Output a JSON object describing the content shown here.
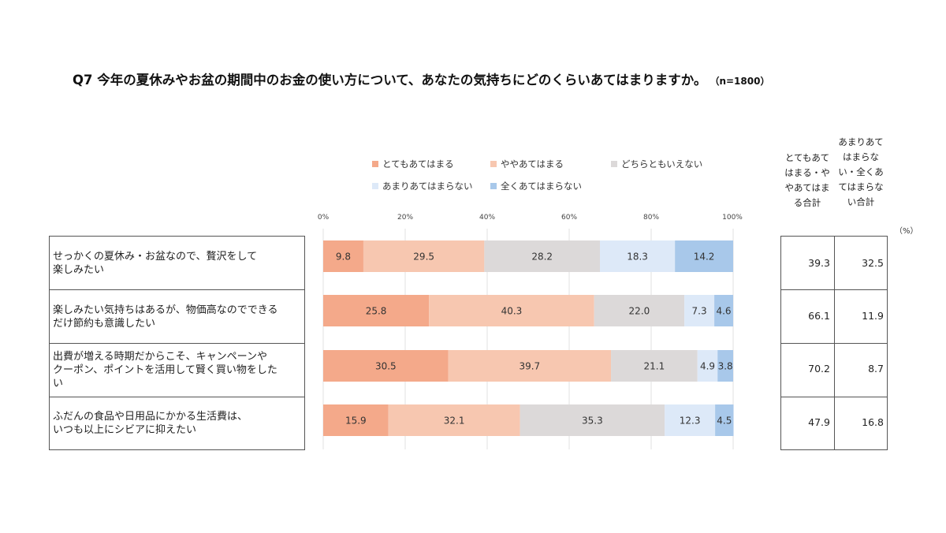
{
  "title": "Q7 今年の夏休みやお盆の期間中のお金の使い方について、あなたの気持ちにどのくらいあてはまりますか。",
  "sample_size": "（n=1800）",
  "unit_label": "（%）",
  "summary_headers": [
    "とてもあてはまる・ややあてはまる合計",
    "あまりあてはまらない・全くあてはまらない合計"
  ],
  "colors": {
    "とてもあてはまる": "#f4a98a",
    "ややあてはまる": "#f7c7b0",
    "どちらともいえない": "#dcd9d9",
    "あまりあてはまらない": "#dde9f8",
    "全くあてはまらない": "#a8c8ea"
  },
  "chart_data": {
    "type": "bar",
    "orientation": "horizontal-stacked-100",
    "xlim": [
      0,
      100
    ],
    "x_ticks": [
      "0%",
      "20%",
      "40%",
      "60%",
      "80%",
      "100%"
    ],
    "grid": "vertical",
    "legend_position": "top",
    "categories": [
      "せっかくの夏休み・お盆なので、贅沢をして楽しみたい",
      "楽しみたい気持ちはあるが、物価高なのでできるだけ節約も意識したい",
      "出費が増える時期だからこそ、キャンペーンやクーポン、ポイントを活用して賢く買い物をしたい",
      "ふだんの食品や日用品にかかる生活費は、いつも以上にシビアに抑えたい"
    ],
    "category_lines": [
      [
        "せっかくの夏休み・お盆なので、贅沢をして",
        "楽しみたい"
      ],
      [
        "楽しみたい気持ちはあるが、物価高なのでできる",
        "だけ節約も意識したい"
      ],
      [
        "出費が増える時期だからこそ、キャンペーンや",
        "クーポン、ポイントを活用して賢く買い物をした",
        "い"
      ],
      [
        "ふだんの食品や日用品にかかる生活費は、",
        "いつも以上にシビアに抑えたい"
      ]
    ],
    "series": [
      {
        "name": "とてもあてはまる",
        "values": [
          9.8,
          25.8,
          30.5,
          15.9
        ]
      },
      {
        "name": "ややあてはまる",
        "values": [
          29.5,
          40.3,
          39.7,
          32.1
        ]
      },
      {
        "name": "どちらともいえない",
        "values": [
          28.2,
          22.0,
          21.1,
          35.3
        ]
      },
      {
        "name": "あまりあてはまらない",
        "values": [
          18.3,
          7.3,
          4.9,
          12.3
        ]
      },
      {
        "name": "全くあてはまらない",
        "values": [
          14.2,
          4.6,
          3.8,
          4.5
        ]
      }
    ],
    "summary": {
      "top2": [
        "39.3",
        "66.1",
        "70.2",
        "47.9"
      ],
      "bottom2": [
        "32.5",
        "11.9",
        "8.7",
        "16.8"
      ]
    }
  }
}
